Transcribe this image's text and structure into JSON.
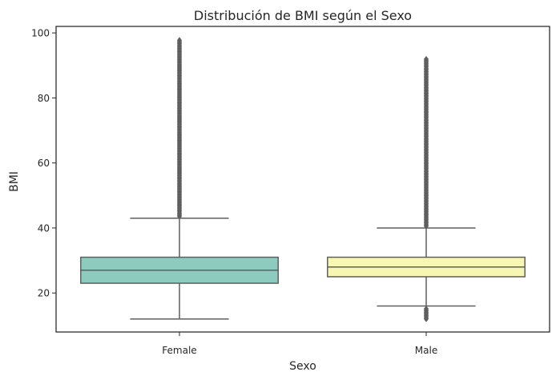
{
  "chart_data": {
    "type": "box",
    "title": "Distribución de BMI según el Sexo",
    "xlabel": "Sexo",
    "ylabel": "BMI",
    "ylim": [
      8,
      102
    ],
    "yticks": [
      20,
      40,
      60,
      80,
      100
    ],
    "grid": false,
    "categories": [
      "Female",
      "Male"
    ],
    "boxes": [
      {
        "category": "Female",
        "color": "#8dcbbf",
        "whisker_low": 12,
        "q1": 23,
        "median": 27,
        "q3": 31,
        "whisker_high": 43,
        "outliers_high_range": [
          43.5,
          98
        ],
        "outliers_low_range": null
      },
      {
        "category": "Male",
        "color": "#f7f7b3",
        "whisker_low": 16,
        "q1": 25,
        "median": 28,
        "q3": 31,
        "whisker_high": 40,
        "outliers_high_range": [
          40.5,
          92
        ],
        "outliers_low_range": [
          12,
          15.2
        ]
      }
    ]
  }
}
